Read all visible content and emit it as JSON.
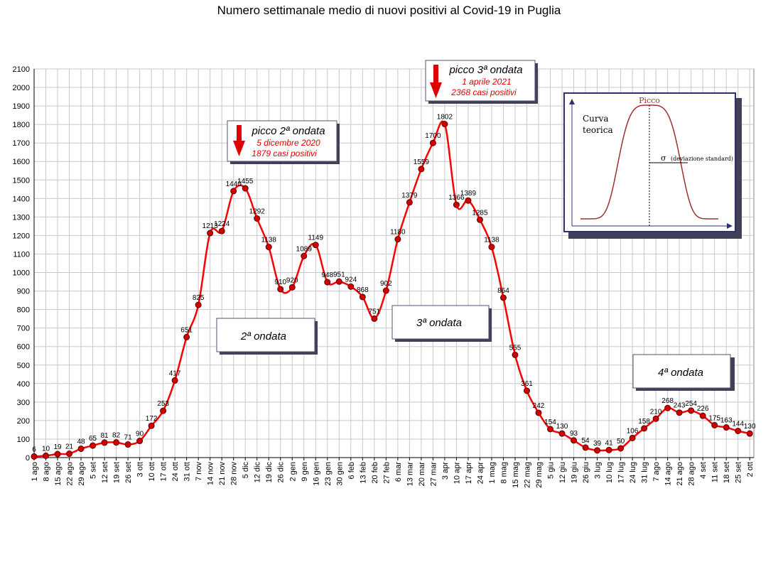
{
  "chart_data": {
    "type": "line",
    "title": "Numero settimanale medio di nuovi positivi al Covid-19 in Puglia",
    "xlabel": "",
    "ylabel": "",
    "ylim": [
      0,
      2100
    ],
    "yticks": [
      0,
      100,
      200,
      300,
      400,
      500,
      600,
      700,
      800,
      900,
      1000,
      1100,
      1200,
      1300,
      1400,
      1500,
      1600,
      1700,
      1800,
      1900,
      2000,
      2100
    ],
    "grid": true,
    "line_color": "#ff0000",
    "marker_color": "#d00000",
    "categories": [
      "1 ago",
      "8 ago",
      "15 ago",
      "22 ago",
      "29 ago",
      "5 set",
      "12 set",
      "19 set",
      "26 set",
      "3 ott",
      "10 ott",
      "17 ott",
      "24 ott",
      "31 ott",
      "7 nov",
      "14 nov",
      "21 nov",
      "28 nov",
      "5 dic",
      "12 dic",
      "19 dic",
      "26 dic",
      "2 gen",
      "9 gen",
      "16 gen",
      "23 gen",
      "30 gen",
      "6 feb",
      "13 feb",
      "20 feb",
      "27 feb",
      "6 mar",
      "13 mar",
      "20 mar",
      "27 mar",
      "3 apr",
      "10 apr",
      "17 apr",
      "24 apr",
      "1 mag",
      "8 mag",
      "15 mag",
      "22 mag",
      "29 mag",
      "5 giu",
      "12 giu",
      "19 giu",
      "26 giu",
      "3 lug",
      "10 lug",
      "17 lug",
      "24 lug",
      "31 lug",
      "7 ago",
      "14 ago",
      "21 ago",
      "28 ago",
      "4 set",
      "11 set",
      "18 set",
      "25 set",
      "2 ott"
    ],
    "values": [
      6,
      10,
      19,
      21,
      48,
      65,
      81,
      82,
      71,
      90,
      172,
      253,
      417,
      651,
      825,
      1213,
      1224,
      1440,
      1455,
      1292,
      1138,
      910,
      920,
      1089,
      1149,
      948,
      951,
      924,
      868,
      751,
      902,
      1180,
      1379,
      1559,
      1700,
      1802,
      1366,
      1389,
      1285,
      1138,
      864,
      555,
      361,
      242,
      154,
      130,
      93,
      54,
      39,
      41,
      50,
      106,
      158,
      210,
      268,
      243,
      254,
      226,
      175,
      163,
      144,
      130
    ],
    "point_labels": [
      "6",
      "10",
      "19",
      "21",
      "48",
      "65",
      "81",
      "82",
      "71",
      "90",
      "172",
      "253",
      "417",
      "651",
      "825",
      "1213",
      "1224",
      "1440",
      "1455",
      "1292",
      "1138",
      "910",
      "920",
      "1089",
      "1149",
      "948",
      "951",
      "924",
      "868",
      "751",
      "902",
      "1180",
      "1379",
      "1559",
      "1700",
      "1802",
      "1366",
      "1389",
      "1285",
      "1138",
      "864",
      "555",
      "361",
      "242",
      "154",
      "130",
      "93",
      "54",
      "39",
      "41",
      "50",
      "106",
      "158",
      "210",
      "268",
      "243",
      "254",
      "226",
      "175",
      "163",
      "144",
      "130"
    ],
    "annotations": {
      "wave2_label": "2ª ondata",
      "wave3_label": "3ª ondata",
      "wave4_label": "4ª ondata",
      "peak2_title": "picco 2ª ondata",
      "peak2_date": "5 dicembre 2020",
      "peak2_cases": "1879 casi positivi",
      "peak3_title": "picco 3ª ondata",
      "peak3_date": "1 aprile 2021",
      "peak3_cases": "2368 casi positivi"
    },
    "inset": {
      "label_curve_line1": "Curva",
      "label_curve_line2": "teorica",
      "label_peak": "Picco",
      "label_sigma": "σ",
      "label_std": "(deviazione standard)"
    }
  }
}
